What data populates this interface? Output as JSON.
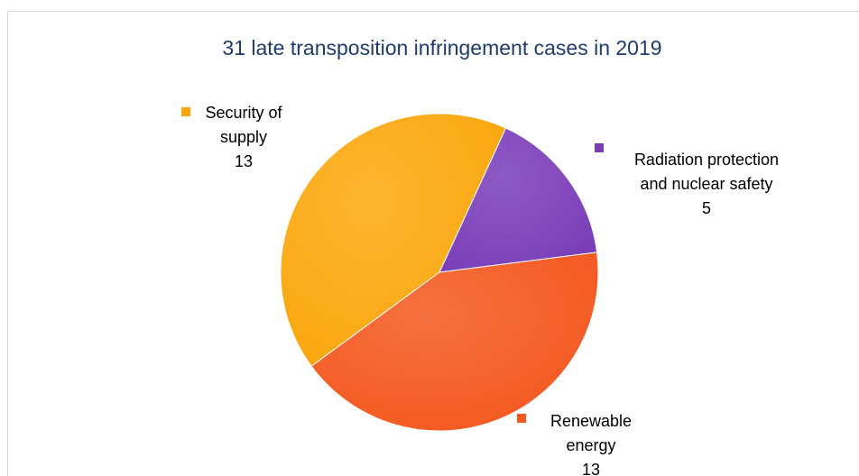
{
  "chart_data": {
    "type": "pie",
    "title": "31 late transposition infringement cases in 2019",
    "categories": [
      "Radiation protection and nuclear safety",
      "Renewable energy",
      "Security of supply"
    ],
    "values": [
      5,
      13,
      13
    ],
    "colors": [
      "#7a3db8",
      "#f4581e",
      "#fba70c"
    ]
  }
}
